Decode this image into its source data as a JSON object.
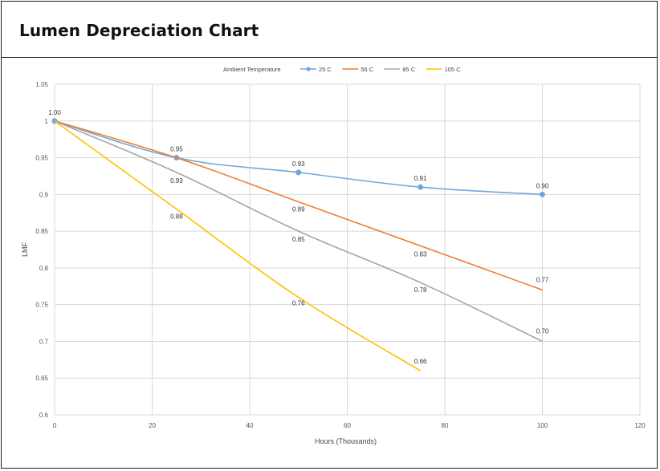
{
  "header": {
    "title": "Lumen Depreciation Chart"
  },
  "chart_data": {
    "type": "line",
    "title": "",
    "xlabel": "Hours (Thousands)",
    "ylabel": "LMF",
    "xlim": [
      0,
      120
    ],
    "ylim": [
      0.6,
      1.05
    ],
    "x_ticks": [
      "0",
      "20",
      "40",
      "60",
      "80",
      "100",
      "120"
    ],
    "y_ticks": [
      "1.05",
      "1",
      "0.95",
      "0.9",
      "0.85",
      "0.8",
      "0.75",
      "0.7",
      "0.65",
      "0.6"
    ],
    "grid": true,
    "legend": {
      "title": "Ambient Temperature",
      "placement": "top"
    },
    "series": [
      {
        "name": "25 C",
        "color": "#6fa8dc",
        "markers": true,
        "x": [
          0,
          25,
          50,
          75,
          100
        ],
        "y": [
          1.0,
          0.95,
          0.93,
          0.91,
          0.9
        ],
        "labels": [
          "1.00",
          "0.95",
          "0.93",
          "0.91",
          "0.90"
        ]
      },
      {
        "name": "55 C",
        "color": "#ed7d31",
        "markers": false,
        "x": [
          0,
          25,
          50,
          75,
          100
        ],
        "y": [
          1.0,
          0.95,
          0.89,
          0.83,
          0.77
        ],
        "labels": [
          "",
          "",
          "0.89",
          "0.83",
          "0.77"
        ]
      },
      {
        "name": "85 C",
        "color": "#a5a5a5",
        "markers": false,
        "x": [
          0,
          25,
          50,
          75,
          100
        ],
        "y": [
          1.0,
          0.93,
          0.85,
          0.78,
          0.7
        ],
        "labels": [
          "",
          "0.93",
          "0.85",
          "0.78",
          "0.70"
        ]
      },
      {
        "name": "105 C",
        "color": "#ffc000",
        "markers": false,
        "x": [
          0,
          25,
          50,
          75
        ],
        "y": [
          1.0,
          0.88,
          0.76,
          0.66
        ],
        "labels": [
          "",
          "0.88",
          "0.76",
          "0.66"
        ]
      }
    ]
  }
}
